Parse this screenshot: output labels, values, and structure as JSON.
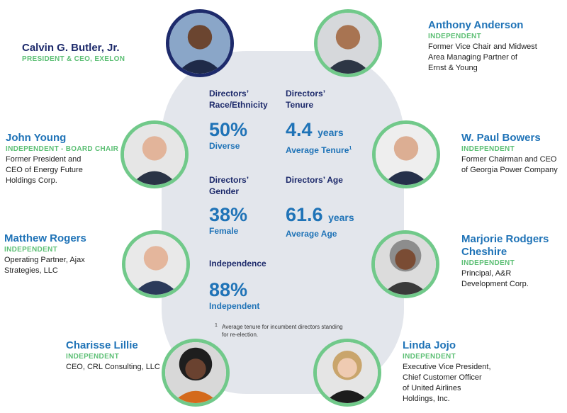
{
  "directors": [
    {
      "id": "butler",
      "name": "Calvin G. Butler, Jr.",
      "tag": "PRESIDENT & CEO, EXELON",
      "desc": ""
    },
    {
      "id": "anderson",
      "name": "Anthony Anderson",
      "tag": "INDEPENDENT",
      "desc": "Former Vice Chair and Midwest\nArea Managing Partner of\nErnst & Young"
    },
    {
      "id": "young",
      "name": "John Young",
      "tag": "INDEPENDENT - BOARD CHAIR",
      "desc": "Former President and\nCEO of Energy Future\nHoldings Corp."
    },
    {
      "id": "bowers",
      "name": "W. Paul Bowers",
      "tag": "INDEPENDENT",
      "desc": "Former Chairman and CEO\nof Georgia Power Company"
    },
    {
      "id": "rogers",
      "name": "Matthew Rogers",
      "tag": "INDEPENDENT",
      "desc": "Operating Partner, Ajax\nStrategies, LLC"
    },
    {
      "id": "cheshire",
      "name": "Marjorie Rodgers\nCheshire",
      "tag": "INDEPENDENT",
      "desc": "Principal, A&R\nDevelopment Corp."
    },
    {
      "id": "lillie",
      "name": "Charisse Lillie",
      "tag": "INDEPENDENT",
      "desc": "CEO, CRL Consulting, LLC"
    },
    {
      "id": "jojo",
      "name": "Linda Jojo",
      "tag": "INDEPENDENT",
      "desc": "Executive Vice President,\nChief Customer Officer\nof United Airlines\nHoldings, Inc."
    }
  ],
  "stats": {
    "race": {
      "head": "Directors’\nRace/Ethnicity",
      "value": "50%",
      "sub": "Diverse"
    },
    "tenure": {
      "head": "Directors’\nTenure",
      "value": "4.4",
      "unit": "years",
      "sub": "Average Tenure",
      "sup": "1"
    },
    "gender": {
      "head": "Directors’\nGender",
      "value": "38%",
      "sub": "Female"
    },
    "age": {
      "head": "Directors’ Age",
      "value": "61.6",
      "unit": "years",
      "sub": "Average Age"
    },
    "independence": {
      "head": "Independence",
      "value": "88%",
      "sub": "Independent"
    }
  },
  "footnote": {
    "mark": "1",
    "text": "Average tenure for incumbent directors standing for re-election."
  },
  "colors": {
    "navy": "#1d2a6b",
    "blue": "#1f73b7",
    "green": "#5cbf74",
    "ring": "#71c98a",
    "panel": "#e3e6ec"
  }
}
